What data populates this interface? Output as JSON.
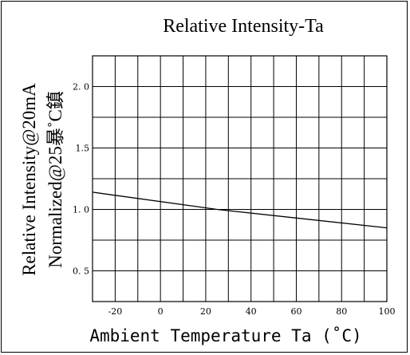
{
  "chart_data": {
    "type": "line",
    "title": "Relative Intensity-Ta",
    "xlabel": "Ambient Temperature Ta (˚C)",
    "ylabel_lines": [
      "Relative Intensity@20mA",
      "Normalized@25暴˚C鎮"
    ],
    "xlim": [
      -30,
      100
    ],
    "ylim": [
      0.25,
      2.25
    ],
    "x_tick_labels": [
      "-20",
      "0",
      "20",
      "40",
      "60",
      "80",
      "100"
    ],
    "x_tick_values": [
      -20,
      0,
      20,
      40,
      60,
      80,
      100
    ],
    "y_tick_labels": [
      "0. 5",
      "1. 0",
      "1.5",
      "2. 0"
    ],
    "y_tick_values": [
      0.5,
      1.0,
      1.5,
      2.0
    ],
    "grid": true,
    "series": [
      {
        "x": [
          -30,
          25,
          100
        ],
        "y": [
          1.14,
          1.0,
          0.85
        ]
      }
    ],
    "colors": {
      "line": "#000000",
      "grid": "#000000",
      "background": "#ffffff"
    }
  }
}
